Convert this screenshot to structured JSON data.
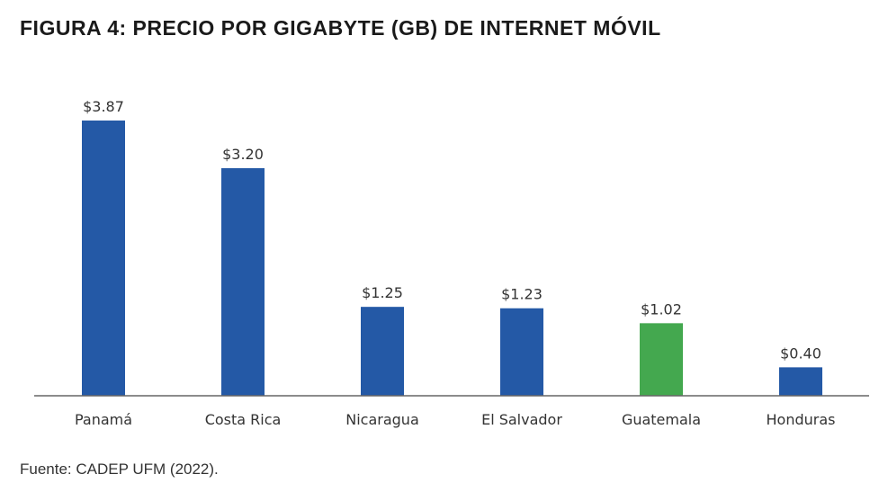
{
  "title": "FIGURA 4: PRECIO POR GIGABYTE (GB) DE INTERNET MÓVIL",
  "source": "Fuente: CADEP UFM (2022).",
  "colors": {
    "default_bar": "#2459a6",
    "highlight_bar": "#44a84f",
    "axis": "#666666"
  },
  "chart_data": {
    "type": "bar",
    "title": "FIGURA 4: PRECIO POR GIGABYTE (GB) DE INTERNET MÓVIL",
    "categories": [
      "Panamá",
      "Costa Rica",
      "Nicaragua",
      "El Salvador",
      "Guatemala",
      "Honduras"
    ],
    "values": [
      3.87,
      3.2,
      1.25,
      1.23,
      1.02,
      0.4
    ],
    "value_labels": [
      "$3.87",
      "$3.20",
      "$1.25",
      "$1.23",
      "$1.02",
      "$0.40"
    ],
    "highlight": "Guatemala",
    "xlabel": "",
    "ylabel": "",
    "ylim": [
      0,
      3.87
    ],
    "grid": false,
    "legend": "none"
  }
}
